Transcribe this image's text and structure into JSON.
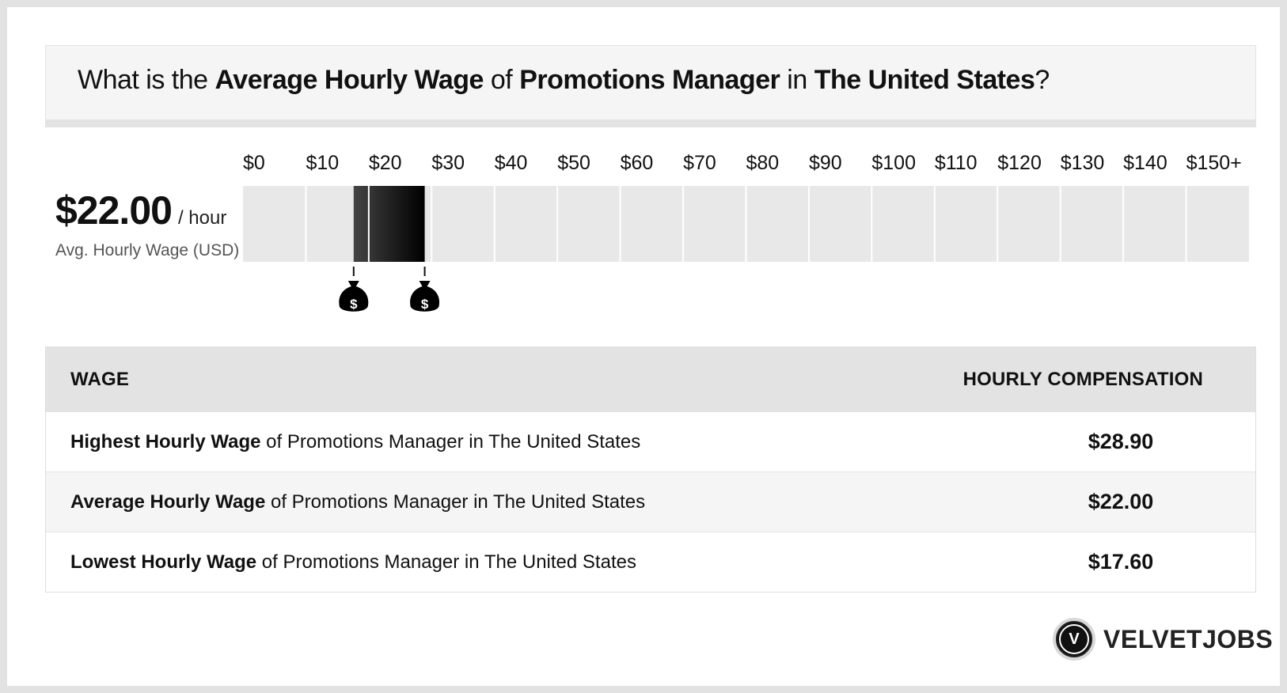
{
  "title": {
    "prefix": "What is the ",
    "metric": "Average Hourly Wage",
    "of": " of ",
    "job": "Promotions Manager",
    "in": " in ",
    "location": "The United States",
    "suffix": "?"
  },
  "summary": {
    "value": "$22.00",
    "unit": "/ hour",
    "caption": "Avg. Hourly Wage (USD)"
  },
  "chart_data": {
    "type": "bar",
    "tick_labels": [
      "$0",
      "$10",
      "$20",
      "$30",
      "$40",
      "$50",
      "$60",
      "$70",
      "$80",
      "$90",
      "$100",
      "$110",
      "$120",
      "$130",
      "$140",
      "$150+"
    ],
    "range": [
      17.6,
      28.9
    ],
    "average": 22.0,
    "markers": [
      {
        "value": 17.6,
        "icon": "money-bag-icon",
        "symbol": "$"
      },
      {
        "value": 28.9,
        "icon": "money-bag-icon",
        "symbol": "$"
      }
    ],
    "colors": {
      "track": "#e8e8e8",
      "range_start": "#444444",
      "range_end": "#000000",
      "divider": "#ffffff"
    }
  },
  "table": {
    "headers": {
      "wage": "WAGE",
      "compensation": "HOURLY COMPENSATION"
    },
    "rows": [
      {
        "bold": "Highest Hourly Wage",
        "text": " of Promotions Manager in The United States",
        "value": "$28.90"
      },
      {
        "bold": "Average Hourly Wage",
        "text": " of Promotions Manager in The United States",
        "value": "$22.00"
      },
      {
        "bold": "Lowest Hourly Wage",
        "text": " of Promotions Manager in The United States",
        "value": "$17.60"
      }
    ]
  },
  "brand": {
    "logo_letter": "V",
    "name": "VELVETJOBS"
  }
}
